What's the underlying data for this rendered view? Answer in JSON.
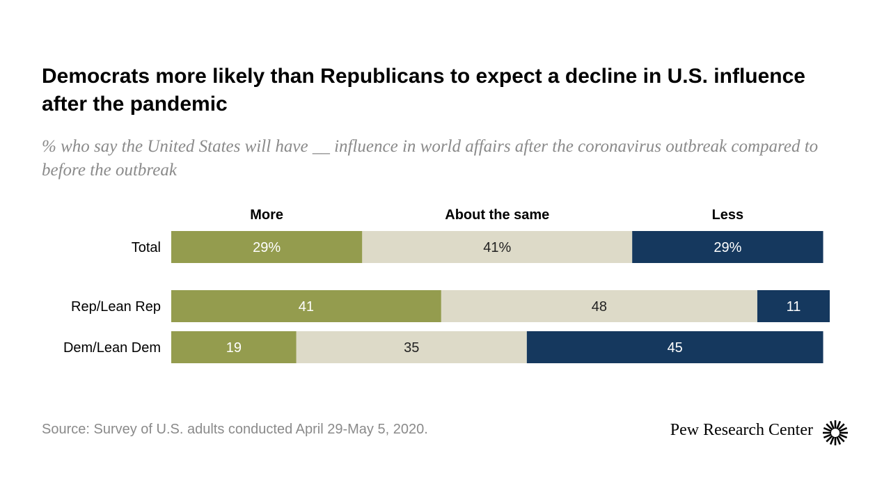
{
  "title": "Democrats more likely than Republicans to expect a decline in U.S. influence after the pandemic",
  "subtitle": "% who say the United States will have __ influence in world affairs after the coronavirus outbreak compared to before the outbreak",
  "source": "Source: Survey of U.S. adults conducted April 29-May 5, 2020.",
  "brand": "Pew Research Center",
  "chart_data": {
    "type": "bar",
    "orientation": "horizontal",
    "stacked": true,
    "grid": false,
    "legend_placement": "top",
    "categories": [
      "Total",
      "Rep/Lean Rep",
      "Dem/Lean Dem"
    ],
    "series": [
      {
        "name": "More",
        "values": [
          29,
          41,
          19
        ],
        "labels": [
          "29%",
          "41",
          "19"
        ],
        "color": "#949c4e",
        "label_color": "#ffffff"
      },
      {
        "name": "About the same",
        "values": [
          41,
          48,
          35
        ],
        "labels": [
          "41%",
          "48",
          "35"
        ],
        "color": "#dddac8",
        "label_color": "#222222"
      },
      {
        "name": "Less",
        "values": [
          29,
          11,
          45
        ],
        "labels": [
          "29%",
          "11",
          "45"
        ],
        "color": "#15385e",
        "label_color": "#ffffff"
      }
    ],
    "xlim": [
      0,
      100
    ]
  }
}
